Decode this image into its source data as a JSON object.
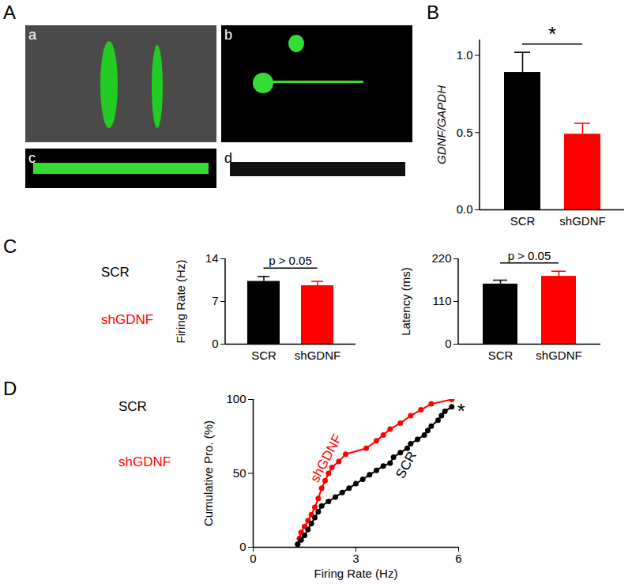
{
  "figure": {
    "panels": [
      "A",
      "B",
      "C",
      "D"
    ],
    "image_panels": [
      "a",
      "b",
      "c",
      "d"
    ],
    "traces": [
      {
        "panel": "C",
        "labels": [
          "SCR",
          "shGDNF"
        ],
        "colors": [
          "#000000",
          "#ff0000"
        ]
      },
      {
        "panel": "D",
        "labels": [
          "SCR",
          "shGDNF"
        ],
        "colors": [
          "#000000",
          "#ff0000"
        ]
      }
    ]
  },
  "chart_data": [
    {
      "panel": "B",
      "type": "bar",
      "categories": [
        "SCR",
        "shGDNF"
      ],
      "values": [
        0.89,
        0.49
      ],
      "errors": [
        0.13,
        0.07
      ],
      "colors": [
        "#000000",
        "#ff0000"
      ],
      "ylabel": "GDNF/GAPDH",
      "ylim": [
        0,
        1.1
      ],
      "yticks": [
        {
          "value": 0,
          "label": "0.0"
        },
        {
          "value": 0.5,
          "label": "0.5"
        },
        {
          "value": 1,
          "label": "1.0"
        }
      ],
      "annotation": "*"
    },
    {
      "panel": "C",
      "type": "bar",
      "categories": [
        "SCR",
        "shGDNF"
      ],
      "values": [
        10.3,
        9.6
      ],
      "errors": [
        0.8,
        0.7
      ],
      "colors": [
        "#000000",
        "#ff0000"
      ],
      "ylabel": "Firing Rate (Hz)",
      "ylim": [
        0,
        14
      ],
      "yticks": [
        0,
        7,
        14
      ],
      "annotation": "p > 0.05"
    },
    {
      "type": "bar",
      "categories": [
        "SCR",
        "shGDNF"
      ],
      "values": [
        155,
        175
      ],
      "errors": [
        10,
        13
      ],
      "colors": [
        "#000000",
        "#ff0000"
      ],
      "ylabel": "Latency (ms)",
      "ylim": [
        0,
        220
      ],
      "yticks": [
        0,
        110,
        220
      ],
      "annotation": "p > 0.05"
    },
    {
      "panel": "D",
      "type": "line",
      "marker": "circle",
      "xlabel": "Firing Rate (Hz)",
      "ylabel": "Cumulative Pro. (%)",
      "xlim": [
        0,
        6
      ],
      "xticks": [
        0,
        3,
        6
      ],
      "ylim": [
        0,
        100
      ],
      "yticks": [
        0,
        50,
        100
      ],
      "annotation": "*",
      "series": [
        {
          "name": "shGDNF",
          "color": "#ff0000",
          "x": [
            1.3,
            1.35,
            1.4,
            1.5,
            1.6,
            1.7,
            1.8,
            1.9,
            2.0,
            2.1,
            2.2,
            2.3,
            2.5,
            2.7,
            3.3,
            3.6,
            3.8,
            4.0,
            4.3,
            4.6,
            4.9,
            5.2,
            5.8
          ],
          "values": [
            2,
            6,
            10,
            14,
            18,
            22,
            27,
            33,
            40,
            45,
            50,
            54,
            58,
            63,
            67,
            72,
            76,
            80,
            84,
            89,
            93,
            97,
            100
          ]
        },
        {
          "name": "SCR",
          "color": "#000000",
          "x": [
            1.3,
            1.4,
            1.5,
            1.6,
            1.7,
            1.8,
            1.9,
            2.0,
            2.2,
            2.4,
            2.6,
            2.8,
            3.0,
            3.2,
            3.4,
            3.6,
            3.8,
            4.0,
            4.1,
            4.3,
            4.5,
            4.6,
            4.8,
            5.0,
            5.1,
            5.2,
            5.4,
            5.5,
            5.6,
            5.8
          ],
          "values": [
            2,
            5,
            8,
            12,
            16,
            20,
            24,
            28,
            31,
            34,
            37,
            40,
            43,
            46,
            49,
            52,
            55,
            57,
            61,
            64,
            67,
            70,
            73,
            76,
            79,
            82,
            86,
            89,
            92,
            95
          ]
        }
      ]
    }
  ]
}
